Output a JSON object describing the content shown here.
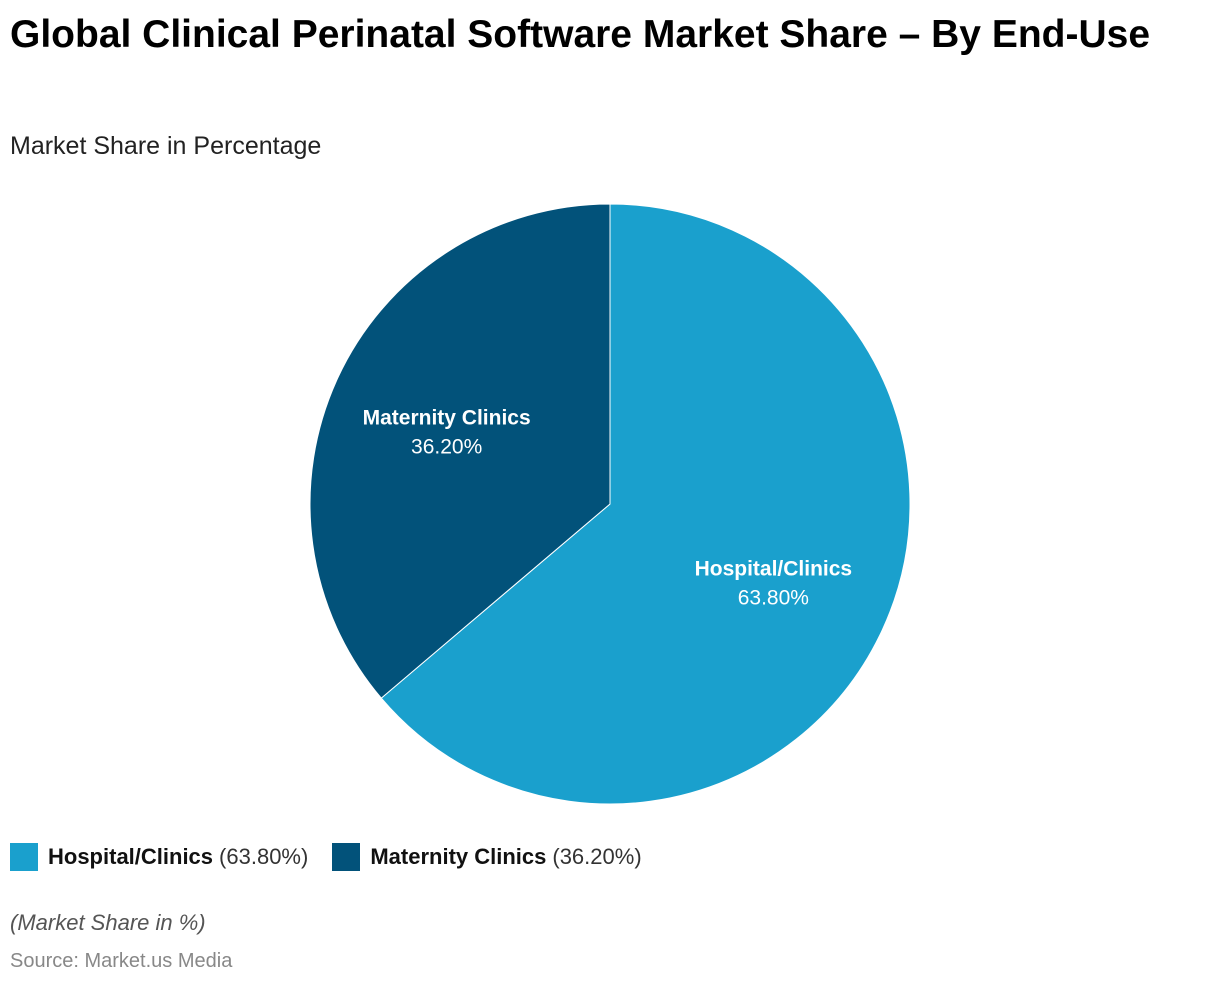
{
  "title": "Global Clinical Perinatal Software Market Share – By End-Use",
  "subtitle": "Market Share in Percentage",
  "note": "(Market Share in %)",
  "source": "Source: Market.us Media",
  "chart_data": {
    "type": "pie",
    "title": "Global Clinical Perinatal Software Market Share – By End-Use",
    "subtitle": "Market Share in Percentage",
    "unit": "%",
    "legend_position": "bottom-left",
    "categories": [
      "Hospital/Clinics",
      "Maternity Clinics"
    ],
    "values": [
      63.8,
      36.2
    ],
    "value_labels": [
      "63.80%",
      "36.20%"
    ],
    "legend_values": [
      "(63.80%)",
      "(36.20%)"
    ],
    "colors": [
      "#1aa0cd",
      "#02527a"
    ]
  }
}
